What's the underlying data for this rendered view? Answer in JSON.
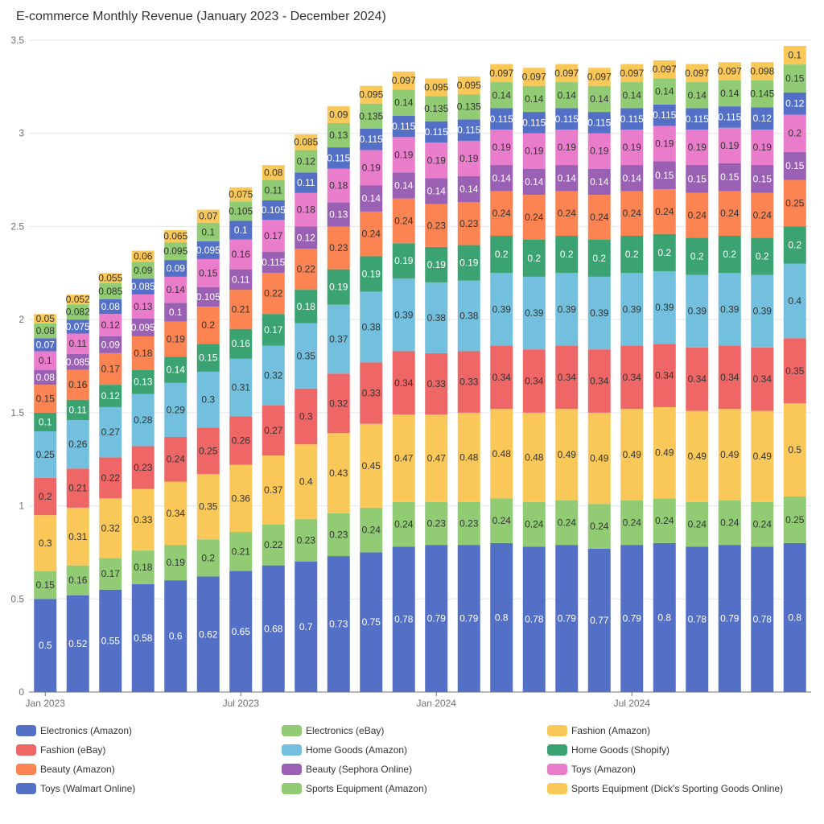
{
  "chart_data": {
    "type": "bar",
    "stacked": true,
    "title": "E-commerce Monthly Revenue (January 2023 - December 2024)",
    "xlabel": "",
    "ylabel": "",
    "ylim": [
      0,
      3.5
    ],
    "yticks": [
      0,
      0.5,
      1,
      1.5,
      2,
      2.5,
      3,
      3.5
    ],
    "grid": true,
    "legend_position": "top-right",
    "x_tick_labels": [
      "Jan 2023",
      "Jul 2023",
      "Jan 2024",
      "Jul 2024"
    ],
    "categories": [
      "2023-01",
      "2023-02",
      "2023-03",
      "2023-04",
      "2023-05",
      "2023-06",
      "2023-07",
      "2023-08",
      "2023-09",
      "2023-10",
      "2023-11",
      "2023-12",
      "2024-01",
      "2024-02",
      "2024-03",
      "2024-04",
      "2024-05",
      "2024-06",
      "2024-07",
      "2024-08",
      "2024-09",
      "2024-10",
      "2024-11",
      "2024-12"
    ],
    "series": [
      {
        "name": "Electronics (Amazon)",
        "color": "#5470c6",
        "values": [
          0.5,
          0.52,
          0.55,
          0.58,
          0.6,
          0.62,
          0.65,
          0.68,
          0.7,
          0.73,
          0.75,
          0.78,
          0.79,
          0.79,
          0.8,
          0.78,
          0.79,
          0.77,
          0.79,
          0.8,
          0.78,
          0.79,
          0.78,
          0.8
        ]
      },
      {
        "name": "Electronics (eBay)",
        "color": "#91cc75",
        "values": [
          0.15,
          0.16,
          0.17,
          0.18,
          0.19,
          0.2,
          0.21,
          0.22,
          0.23,
          0.23,
          0.24,
          0.24,
          0.23,
          0.23,
          0.24,
          0.24,
          0.24,
          0.24,
          0.24,
          0.24,
          0.24,
          0.24,
          0.24,
          0.25
        ]
      },
      {
        "name": "Fashion (Amazon)",
        "color": "#fac858",
        "values": [
          0.3,
          0.31,
          0.32,
          0.33,
          0.34,
          0.35,
          0.36,
          0.37,
          0.4,
          0.43,
          0.45,
          0.47,
          0.47,
          0.48,
          0.48,
          0.48,
          0.49,
          0.49,
          0.49,
          0.49,
          0.49,
          0.49,
          0.49,
          0.5
        ]
      },
      {
        "name": "Fashion (eBay)",
        "color": "#ee6666",
        "values": [
          0.2,
          0.21,
          0.22,
          0.23,
          0.24,
          0.25,
          0.26,
          0.27,
          0.3,
          0.32,
          0.33,
          0.34,
          0.33,
          0.33,
          0.34,
          0.34,
          0.34,
          0.34,
          0.34,
          0.34,
          0.34,
          0.34,
          0.34,
          0.35
        ]
      },
      {
        "name": "Home Goods (Amazon)",
        "color": "#73c0de",
        "values": [
          0.25,
          0.26,
          0.27,
          0.28,
          0.29,
          0.3,
          0.31,
          0.32,
          0.35,
          0.37,
          0.38,
          0.39,
          0.38,
          0.38,
          0.39,
          0.39,
          0.39,
          0.39,
          0.39,
          0.39,
          0.39,
          0.39,
          0.39,
          0.4
        ]
      },
      {
        "name": "Home Goods (Shopify)",
        "color": "#3ba272",
        "values": [
          0.1,
          0.11,
          0.12,
          0.13,
          0.14,
          0.15,
          0.16,
          0.17,
          0.18,
          0.19,
          0.19,
          0.19,
          0.19,
          0.19,
          0.2,
          0.2,
          0.2,
          0.2,
          0.2,
          0.2,
          0.2,
          0.2,
          0.2,
          0.2
        ]
      },
      {
        "name": "Beauty (Amazon)",
        "color": "#fc8452",
        "values": [
          0.15,
          0.16,
          0.17,
          0.18,
          0.19,
          0.2,
          0.21,
          0.22,
          0.22,
          0.23,
          0.24,
          0.24,
          0.23,
          0.23,
          0.24,
          0.24,
          0.24,
          0.24,
          0.24,
          0.24,
          0.24,
          0.24,
          0.24,
          0.25
        ]
      },
      {
        "name": "Beauty (Sephora Online)",
        "color": "#9a60b4",
        "values": [
          0.08,
          0.085,
          0.09,
          0.095,
          0.1,
          0.105,
          0.11,
          0.115,
          0.12,
          0.13,
          0.14,
          0.14,
          0.14,
          0.14,
          0.14,
          0.14,
          0.14,
          0.14,
          0.14,
          0.15,
          0.15,
          0.15,
          0.15,
          0.15
        ]
      },
      {
        "name": "Toys (Amazon)",
        "color": "#ea7ccc",
        "values": [
          0.1,
          0.11,
          0.12,
          0.13,
          0.14,
          0.15,
          0.16,
          0.17,
          0.18,
          0.18,
          0.19,
          0.19,
          0.19,
          0.19,
          0.19,
          0.19,
          0.19,
          0.19,
          0.19,
          0.19,
          0.19,
          0.19,
          0.19,
          0.2
        ]
      },
      {
        "name": "Toys (Walmart Online)",
        "color": "#5470c6",
        "values": [
          0.07,
          0.075,
          0.08,
          0.085,
          0.09,
          0.095,
          0.1,
          0.105,
          0.11,
          0.115,
          0.115,
          0.115,
          0.115,
          0.115,
          0.115,
          0.115,
          0.115,
          0.115,
          0.115,
          0.115,
          0.115,
          0.115,
          0.12,
          0.12
        ]
      },
      {
        "name": "Sports Equipment (Amazon)",
        "color": "#91cc75",
        "values": [
          0.08,
          0.082,
          0.085,
          0.09,
          0.095,
          0.1,
          0.105,
          0.11,
          0.12,
          0.13,
          0.135,
          0.14,
          0.135,
          0.135,
          0.14,
          0.14,
          0.14,
          0.14,
          0.14,
          0.14,
          0.14,
          0.14,
          0.145,
          0.15
        ]
      },
      {
        "name": "Sports Equipment (Dick's Sporting Goods Online)",
        "color": "#fac858",
        "values": [
          0.05,
          0.052,
          0.055,
          0.06,
          0.065,
          0.07,
          0.075,
          0.08,
          0.085,
          0.09,
          0.095,
          0.097,
          0.095,
          0.095,
          0.097,
          0.097,
          0.097,
          0.097,
          0.097,
          0.097,
          0.097,
          0.097,
          0.098,
          0.1
        ]
      }
    ]
  }
}
